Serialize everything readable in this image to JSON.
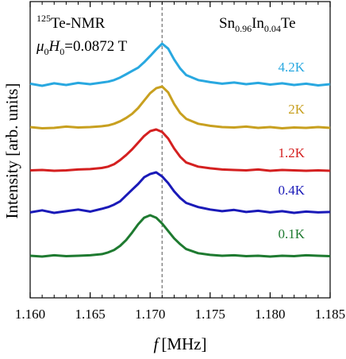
{
  "chart_data": {
    "type": "line",
    "title": "",
    "xlabel": "f",
    "xlabel_unit": "[MHz]",
    "ylabel": "Intensity [arb. units]",
    "xlim": [
      1.16,
      1.185
    ],
    "x_ticks": [
      "1.160",
      "1.165",
      "1.170",
      "1.175",
      "1.180",
      "1.185"
    ],
    "x_tick_values": [
      1.16,
      1.165,
      1.17,
      1.175,
      1.18,
      1.185
    ],
    "y_ticks": "none",
    "grid": false,
    "reference_line": {
      "x": 1.171,
      "style": "dashed",
      "color": "#888888"
    },
    "annotations": {
      "nucleus_sup": "125",
      "nucleus": "Te-NMR",
      "field_mu": "μ",
      "field_mu_sub": "0",
      "field_H": "H",
      "field_H_sub": "0",
      "field_value": "=0.0872 T",
      "sample_a": "Sn",
      "sample_a_sub": "0.96",
      "sample_b": "In",
      "sample_b_sub": "0.04",
      "sample_c": "Te"
    },
    "x": [
      1.16,
      1.161,
      1.162,
      1.163,
      1.164,
      1.165,
      1.166,
      1.1665,
      1.167,
      1.1675,
      1.168,
      1.1685,
      1.169,
      1.1695,
      1.17,
      1.1705,
      1.171,
      1.1715,
      1.172,
      1.1725,
      1.173,
      1.174,
      1.175,
      1.176,
      1.177,
      1.178,
      1.179,
      1.18,
      1.181,
      1.182,
      1.183,
      1.184,
      1.185
    ],
    "series": [
      {
        "name": "4.2K",
        "color": "#29a8e0",
        "baseline_offset": 4,
        "values": [
          0.03,
          -0.02,
          0.04,
          0.0,
          0.05,
          0.02,
          0.06,
          0.08,
          0.12,
          0.18,
          0.26,
          0.34,
          0.42,
          0.55,
          0.7,
          0.86,
          1.0,
          0.88,
          0.62,
          0.4,
          0.24,
          0.12,
          0.07,
          0.03,
          0.06,
          0.02,
          0.05,
          0.01,
          0.04,
          0.0,
          0.03,
          -0.01,
          0.02
        ]
      },
      {
        "name": "2K",
        "color": "#c8a020",
        "baseline_offset": 3,
        "values": [
          0.02,
          -0.01,
          0.0,
          0.03,
          0.01,
          0.02,
          0.04,
          0.06,
          0.1,
          0.16,
          0.24,
          0.34,
          0.48,
          0.66,
          0.84,
          0.96,
          1.0,
          0.86,
          0.58,
          0.36,
          0.22,
          0.1,
          0.05,
          0.02,
          0.01,
          0.03,
          0.0,
          0.02,
          -0.01,
          0.01,
          0.0,
          0.02,
          0.0
        ]
      },
      {
        "name": "1.2K",
        "color": "#d42020",
        "baseline_offset": 2,
        "values": [
          0.01,
          0.02,
          0.0,
          0.01,
          0.03,
          0.04,
          0.07,
          0.1,
          0.16,
          0.26,
          0.38,
          0.52,
          0.68,
          0.84,
          0.96,
          1.0,
          0.94,
          0.78,
          0.54,
          0.34,
          0.2,
          0.1,
          0.06,
          0.03,
          0.02,
          0.01,
          0.03,
          0.0,
          0.02,
          0.01,
          0.0,
          0.01,
          0.0
        ]
      },
      {
        "name": "0.4K",
        "color": "#1a1ab8",
        "baseline_offset": 1,
        "values": [
          0.03,
          0.08,
          0.02,
          0.06,
          0.1,
          0.05,
          0.12,
          0.16,
          0.22,
          0.3,
          0.44,
          0.58,
          0.72,
          0.88,
          0.96,
          1.0,
          0.9,
          0.74,
          0.54,
          0.38,
          0.26,
          0.16,
          0.1,
          0.06,
          0.09,
          0.04,
          0.07,
          0.03,
          0.06,
          0.02,
          0.05,
          0.03,
          0.04
        ]
      },
      {
        "name": "0.1K",
        "color": "#1e7a30",
        "baseline_offset": 0,
        "values": [
          0.02,
          0.0,
          0.03,
          0.01,
          0.02,
          0.03,
          0.06,
          0.1,
          0.16,
          0.26,
          0.4,
          0.58,
          0.78,
          0.94,
          1.0,
          0.94,
          0.8,
          0.62,
          0.44,
          0.3,
          0.18,
          0.08,
          0.04,
          0.02,
          0.03,
          0.01,
          0.02,
          0.0,
          0.02,
          0.01,
          0.03,
          0.02,
          0.01
        ]
      }
    ]
  }
}
